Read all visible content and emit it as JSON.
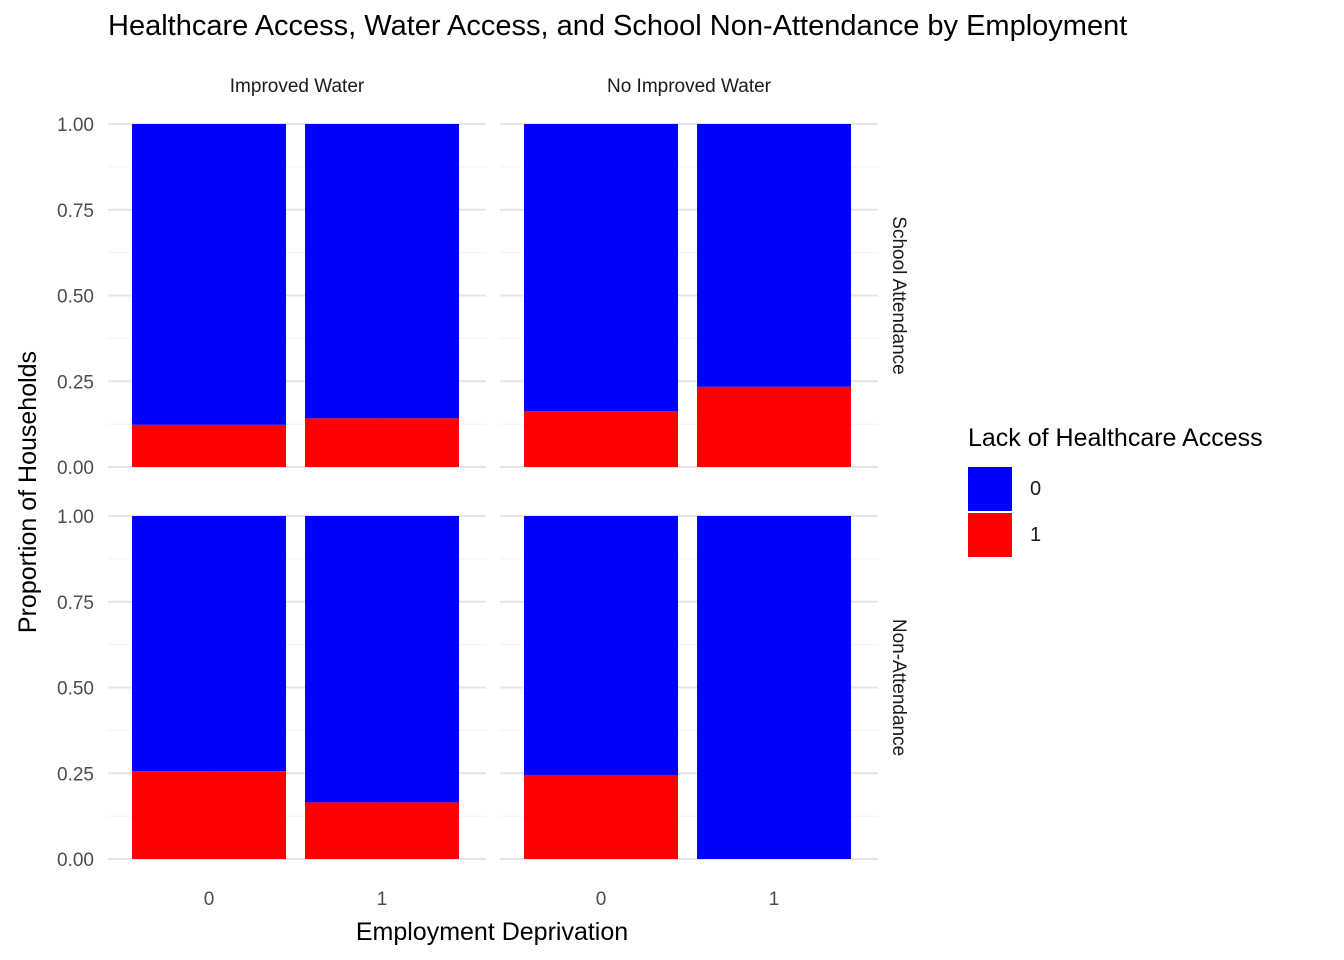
{
  "title": "Healthcare Access, Water Access, and School Non-Attendance by Employment",
  "legend": {
    "title": "Lack of Healthcare Access",
    "entries": [
      {
        "label": "0",
        "color": "#0000FF"
      },
      {
        "label": "1",
        "color": "#FF0000"
      }
    ]
  },
  "chart_data": {
    "type": "bar",
    "stacked": true,
    "xlabel": "Employment Deprivation",
    "ylabel": "Proportion of Households",
    "categories": [
      "0",
      "1"
    ],
    "ylim": [
      0,
      1
    ],
    "yticks": [
      "0.00",
      "0.25",
      "0.50",
      "0.75",
      "1.00"
    ],
    "grid": true,
    "legend_position": "right",
    "facet_columns": [
      "Improved Water",
      "No Improved Water"
    ],
    "facet_rows": [
      "School Attendance",
      "Non-Attendance"
    ],
    "series_colors": {
      "0": "#0000FF",
      "1": "#FF0000"
    },
    "panels": [
      {
        "column": "Improved Water",
        "row": "School Attendance",
        "series": [
          {
            "name": "1",
            "values": [
              0.123,
              0.142
            ]
          },
          {
            "name": "0",
            "values": [
              0.877,
              0.858
            ]
          }
        ]
      },
      {
        "column": "No Improved Water",
        "row": "School Attendance",
        "series": [
          {
            "name": "1",
            "values": [
              0.163,
              0.234
            ]
          },
          {
            "name": "0",
            "values": [
              0.837,
              0.766
            ]
          }
        ]
      },
      {
        "column": "Improved Water",
        "row": "Non-Attendance",
        "series": [
          {
            "name": "1",
            "values": [
              0.256,
              0.165
            ]
          },
          {
            "name": "0",
            "values": [
              0.744,
              0.835
            ]
          }
        ]
      },
      {
        "column": "No Improved Water",
        "row": "Non-Attendance",
        "series": [
          {
            "name": "1",
            "values": [
              0.245,
              0.0
            ]
          },
          {
            "name": "0",
            "values": [
              0.755,
              1.0
            ]
          }
        ]
      }
    ]
  }
}
